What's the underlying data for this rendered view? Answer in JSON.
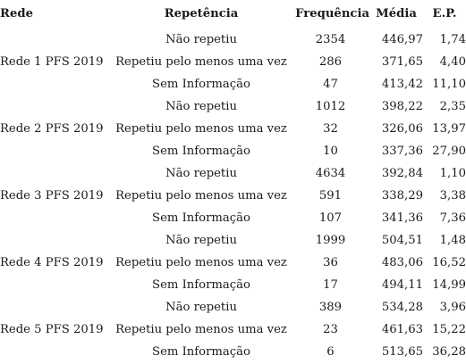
{
  "table": {
    "headers": {
      "rede": "Rede",
      "repetencia": "Repetência",
      "frequencia": "Frequência",
      "media": "Média",
      "ep": "E.P."
    },
    "rows": [
      {
        "rede": "",
        "repetencia": "Não repetiu",
        "frequencia": "2354",
        "media": "446,97",
        "ep": "1,74"
      },
      {
        "rede": "Rede 1 PFS 2019",
        "repetencia": "Repetiu pelo menos uma vez",
        "frequencia": "286",
        "media": "371,65",
        "ep": "4,40"
      },
      {
        "rede": "",
        "repetencia": "Sem Informação",
        "frequencia": "47",
        "media": "413,42",
        "ep": "11,10"
      },
      {
        "rede": "",
        "repetencia": "Não repetiu",
        "frequencia": "1012",
        "media": "398,22",
        "ep": "2,35"
      },
      {
        "rede": "Rede 2 PFS 2019",
        "repetencia": "Repetiu pelo menos uma vez",
        "frequencia": "32",
        "media": "326,06",
        "ep": "13,97"
      },
      {
        "rede": "",
        "repetencia": "Sem Informação",
        "frequencia": "10",
        "media": "337,36",
        "ep": "27,90"
      },
      {
        "rede": "",
        "repetencia": "Não repetiu",
        "frequencia": "4634",
        "media": "392,84",
        "ep": "1,10"
      },
      {
        "rede": "Rede 3 PFS 2019",
        "repetencia": "Repetiu pelo menos uma vez",
        "frequencia": "591",
        "media": "338,29",
        "ep": "3,38"
      },
      {
        "rede": "",
        "repetencia": "Sem Informação",
        "frequencia": "107",
        "media": "341,36",
        "ep": "7,36"
      },
      {
        "rede": "",
        "repetencia": "Não repetiu",
        "frequencia": "1999",
        "media": "504,51",
        "ep": "1,48"
      },
      {
        "rede": "Rede 4 PFS 2019",
        "repetencia": "Repetiu pelo menos uma vez",
        "frequencia": "36",
        "media": "483,06",
        "ep": "16,52"
      },
      {
        "rede": "",
        "repetencia": "Sem Informação",
        "frequencia": "17",
        "media": "494,11",
        "ep": "14,99"
      },
      {
        "rede": "",
        "repetencia": "Não repetiu",
        "frequencia": "389",
        "media": "534,28",
        "ep": "3,96"
      },
      {
        "rede": "Rede 5 PFS 2019",
        "repetencia": "Repetiu pelo menos uma vez",
        "frequencia": "23",
        "media": "461,63",
        "ep": "15,22"
      },
      {
        "rede": "",
        "repetencia": "Sem Informação",
        "frequencia": "6",
        "media": "513,65",
        "ep": "36,28"
      }
    ]
  }
}
